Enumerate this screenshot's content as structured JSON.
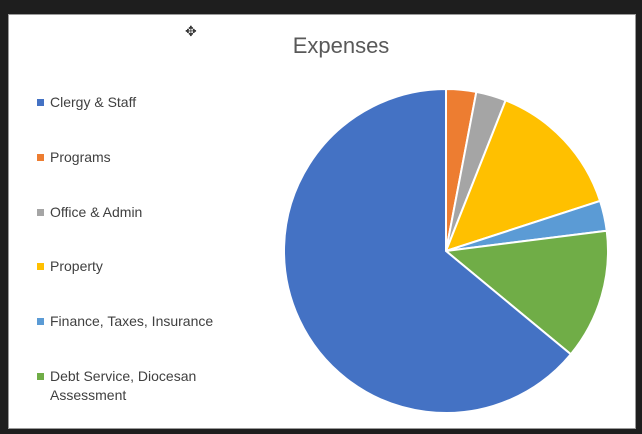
{
  "chart_data": {
    "type": "pie",
    "title": "Expenses",
    "legend_position": "left",
    "categories": [
      "Clergy & Staff",
      "Programs",
      "Office & Admin",
      "Property",
      "Finance, Taxes, Insurance",
      "Debt Service, Diocesan Assessment"
    ],
    "values": [
      64,
      3,
      3,
      14,
      3,
      13
    ],
    "colors": [
      "#4472C4",
      "#ED7D31",
      "#A5A5A5",
      "#FFC000",
      "#5B9BD5",
      "#70AD47"
    ]
  }
}
